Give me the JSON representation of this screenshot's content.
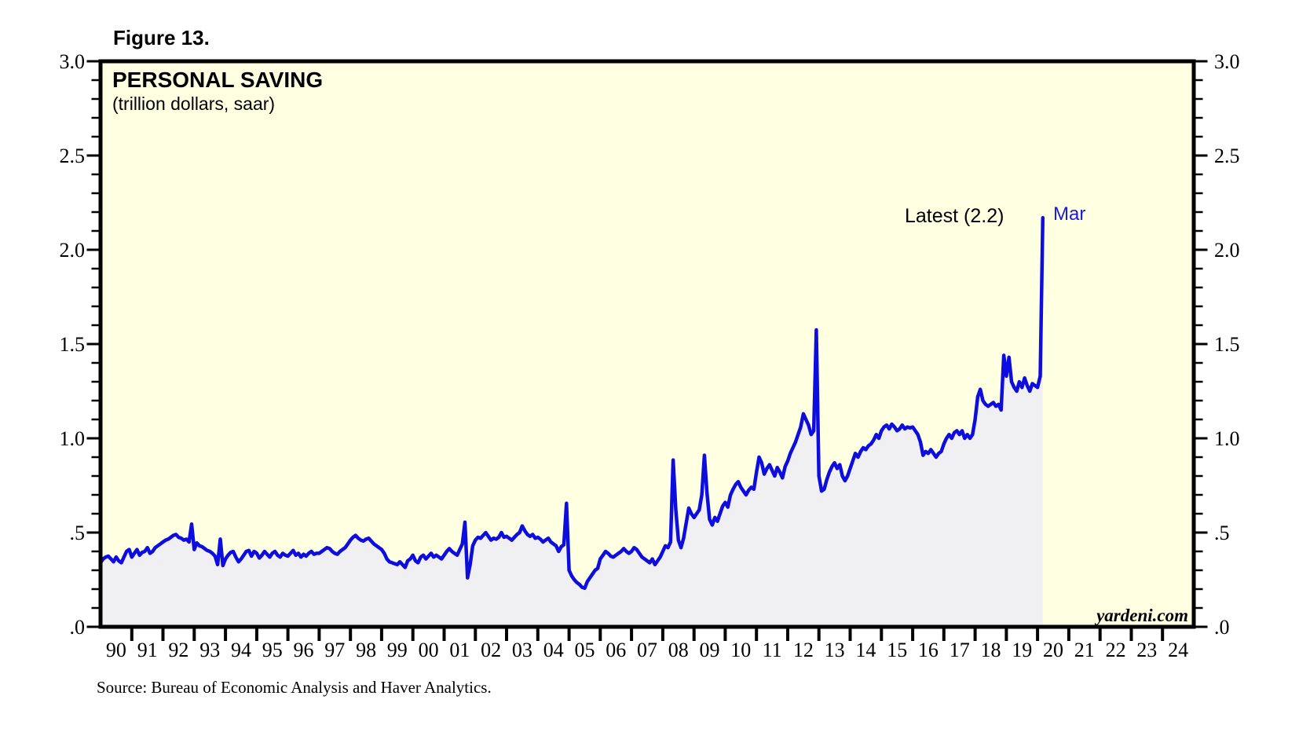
{
  "figure_label": "Figure 13.",
  "watermark": "yardeni.com",
  "source": "Source: Bureau of Economic Analysis and Haver Analytics.",
  "chart_data": {
    "type": "area",
    "title": "PERSONAL SAVING",
    "subtitle": "(trillion dollars, saar)",
    "grid": false,
    "legend": "none",
    "annotations": {
      "latest_label": "Latest (2.2)",
      "latest_value": 2.2,
      "point_label": "Mar"
    },
    "colors": {
      "line": "#0d0de0",
      "fill": "#f0f0f3",
      "plot_bg": "#ffffe1",
      "annotation_blue": "#1a1ae0",
      "axis": "#000000"
    },
    "x_axis": {
      "start_year": 1990,
      "end_year": 2025,
      "tick_interval_years": 1,
      "labels": [
        "90",
        "91",
        "92",
        "93",
        "94",
        "95",
        "96",
        "97",
        "98",
        "99",
        "00",
        "01",
        "02",
        "03",
        "04",
        "05",
        "06",
        "07",
        "08",
        "09",
        "10",
        "11",
        "12",
        "13",
        "14",
        "15",
        "16",
        "17",
        "18",
        "19",
        "20",
        "21",
        "22",
        "23",
        "24"
      ]
    },
    "y_axis": {
      "min": 0.0,
      "max": 3.0,
      "major_step": 0.5,
      "minor_step": 0.1,
      "labels": [
        "3.0",
        "2.5",
        "2.0",
        "1.5",
        "1.0",
        ".5",
        ".0"
      ]
    },
    "series": [
      {
        "name": "Personal Saving",
        "start": "1990-01",
        "end": "2020-03",
        "frequency": "monthly",
        "values": [
          0.34,
          0.36,
          0.37,
          0.375,
          0.36,
          0.345,
          0.37,
          0.35,
          0.34,
          0.37,
          0.4,
          0.41,
          0.37,
          0.39,
          0.41,
          0.38,
          0.395,
          0.4,
          0.42,
          0.39,
          0.4,
          0.42,
          0.43,
          0.44,
          0.45,
          0.46,
          0.465,
          0.475,
          0.485,
          0.49,
          0.475,
          0.47,
          0.46,
          0.465,
          0.45,
          0.545,
          0.41,
          0.445,
          0.43,
          0.425,
          0.415,
          0.405,
          0.4,
          0.39,
          0.375,
          0.33,
          0.465,
          0.325,
          0.36,
          0.38,
          0.395,
          0.4,
          0.37,
          0.345,
          0.36,
          0.38,
          0.4,
          0.405,
          0.375,
          0.4,
          0.39,
          0.365,
          0.38,
          0.4,
          0.385,
          0.37,
          0.39,
          0.4,
          0.38,
          0.37,
          0.39,
          0.38,
          0.375,
          0.39,
          0.405,
          0.38,
          0.39,
          0.37,
          0.385,
          0.375,
          0.39,
          0.4,
          0.385,
          0.39,
          0.39,
          0.4,
          0.41,
          0.42,
          0.415,
          0.4,
          0.39,
          0.385,
          0.4,
          0.41,
          0.42,
          0.44,
          0.46,
          0.475,
          0.485,
          0.47,
          0.46,
          0.455,
          0.465,
          0.47,
          0.455,
          0.44,
          0.43,
          0.42,
          0.41,
          0.39,
          0.36,
          0.345,
          0.34,
          0.335,
          0.33,
          0.345,
          0.33,
          0.315,
          0.35,
          0.36,
          0.38,
          0.35,
          0.34,
          0.37,
          0.38,
          0.36,
          0.375,
          0.39,
          0.37,
          0.38,
          0.37,
          0.36,
          0.38,
          0.4,
          0.415,
          0.4,
          0.39,
          0.38,
          0.41,
          0.44,
          0.555,
          0.26,
          0.33,
          0.43,
          0.46,
          0.475,
          0.47,
          0.485,
          0.5,
          0.48,
          0.46,
          0.47,
          0.465,
          0.475,
          0.5,
          0.475,
          0.48,
          0.47,
          0.46,
          0.475,
          0.49,
          0.5,
          0.535,
          0.51,
          0.49,
          0.48,
          0.49,
          0.47,
          0.475,
          0.465,
          0.45,
          0.46,
          0.47,
          0.45,
          0.44,
          0.43,
          0.4,
          0.425,
          0.435,
          0.655,
          0.3,
          0.27,
          0.25,
          0.235,
          0.225,
          0.21,
          0.205,
          0.24,
          0.26,
          0.28,
          0.3,
          0.31,
          0.36,
          0.38,
          0.4,
          0.39,
          0.375,
          0.37,
          0.38,
          0.39,
          0.4,
          0.415,
          0.4,
          0.39,
          0.4,
          0.42,
          0.41,
          0.39,
          0.37,
          0.36,
          0.35,
          0.34,
          0.36,
          0.33,
          0.35,
          0.37,
          0.4,
          0.43,
          0.42,
          0.45,
          0.885,
          0.62,
          0.46,
          0.42,
          0.47,
          0.55,
          0.63,
          0.6,
          0.58,
          0.6,
          0.62,
          0.7,
          0.91,
          0.71,
          0.57,
          0.54,
          0.58,
          0.56,
          0.6,
          0.64,
          0.66,
          0.635,
          0.7,
          0.73,
          0.755,
          0.77,
          0.74,
          0.72,
          0.7,
          0.725,
          0.74,
          0.73,
          0.82,
          0.9,
          0.87,
          0.81,
          0.84,
          0.86,
          0.83,
          0.8,
          0.845,
          0.82,
          0.79,
          0.85,
          0.88,
          0.92,
          0.95,
          0.98,
          1.02,
          1.06,
          1.13,
          1.1,
          1.07,
          1.02,
          1.04,
          1.575,
          0.8,
          0.72,
          0.73,
          0.78,
          0.82,
          0.85,
          0.87,
          0.84,
          0.86,
          0.8,
          0.775,
          0.8,
          0.84,
          0.88,
          0.92,
          0.9,
          0.93,
          0.95,
          0.94,
          0.96,
          0.97,
          0.99,
          1.02,
          1.0,
          1.04,
          1.06,
          1.07,
          1.05,
          1.075,
          1.06,
          1.04,
          1.05,
          1.07,
          1.05,
          1.06,
          1.055,
          1.06,
          1.04,
          1.02,
          0.98,
          0.91,
          0.93,
          0.92,
          0.94,
          0.92,
          0.9,
          0.92,
          0.93,
          0.97,
          1.0,
          1.02,
          1.0,
          1.03,
          1.04,
          1.02,
          1.04,
          1.0,
          1.02,
          1.0,
          1.02,
          1.1,
          1.22,
          1.26,
          1.2,
          1.18,
          1.17,
          1.18,
          1.19,
          1.17,
          1.18,
          1.15,
          1.44,
          1.33,
          1.43,
          1.3,
          1.27,
          1.25,
          1.3,
          1.27,
          1.32,
          1.28,
          1.25,
          1.29,
          1.28,
          1.27,
          1.33,
          2.17
        ]
      }
    ]
  }
}
